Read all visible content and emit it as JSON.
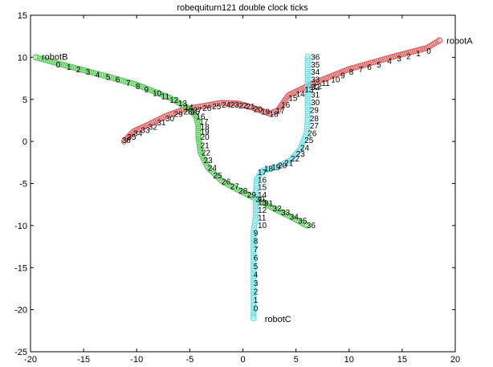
{
  "chart_data": {
    "type": "scatter",
    "title": "robequiturn121  double clock ticks",
    "xlabel": "",
    "ylabel": "",
    "xlim": [
      -20,
      20
    ],
    "ylim": [
      -25,
      15
    ],
    "xticks": [
      -20,
      -15,
      -10,
      -5,
      0,
      5,
      10,
      15,
      20
    ],
    "yticks": [
      -25,
      -20,
      -15,
      -10,
      -5,
      0,
      5,
      10,
      15
    ],
    "grid": false,
    "series": [
      {
        "name": "robotA",
        "color": "#e06060",
        "start_label": {
          "text": "robotA",
          "x": 18.5,
          "y": 12
        },
        "labeled_ticks": [
          {
            "t": "0",
            "x": 17.3,
            "y": 10.8
          },
          {
            "t": "1",
            "x": 16.3,
            "y": 10.5
          },
          {
            "t": "2",
            "x": 15.4,
            "y": 10.2
          },
          {
            "t": "3",
            "x": 14.5,
            "y": 9.9
          },
          {
            "t": "4",
            "x": 13.6,
            "y": 9.6
          },
          {
            "t": "5",
            "x": 12.6,
            "y": 9.2
          },
          {
            "t": "6",
            "x": 11.7,
            "y": 8.9
          },
          {
            "t": "7",
            "x": 10.9,
            "y": 8.6
          },
          {
            "t": "8",
            "x": 10.0,
            "y": 8.3
          },
          {
            "t": "9",
            "x": 9.2,
            "y": 7.9
          },
          {
            "t": "10",
            "x": 8.3,
            "y": 7.4
          },
          {
            "t": "11",
            "x": 7.4,
            "y": 7.0
          },
          {
            "t": "12",
            "x": 6.6,
            "y": 6.6
          },
          {
            "t": "13",
            "x": 5.8,
            "y": 6.2
          },
          {
            "t": "14",
            "x": 5.0,
            "y": 5.7
          },
          {
            "t": "15",
            "x": 4.3,
            "y": 5.2
          },
          {
            "t": "16",
            "x": 3.6,
            "y": 4.4
          },
          {
            "t": "17",
            "x": 3.1,
            "y": 3.7
          },
          {
            "t": "18",
            "x": 2.5,
            "y": 3.3
          },
          {
            "t": "19",
            "x": 1.7,
            "y": 3.6
          },
          {
            "t": "20",
            "x": 1.0,
            "y": 3.9
          },
          {
            "t": "21",
            "x": 0.3,
            "y": 4.2
          },
          {
            "t": "22",
            "x": -0.4,
            "y": 4.3
          },
          {
            "t": "23",
            "x": -1.2,
            "y": 4.4
          },
          {
            "t": "24",
            "x": -2.0,
            "y": 4.4
          },
          {
            "t": "25",
            "x": -2.9,
            "y": 4.2
          },
          {
            "t": "26",
            "x": -3.8,
            "y": 4.0
          },
          {
            "t": "27",
            "x": -4.7,
            "y": 3.8
          },
          {
            "t": "28",
            "x": -5.6,
            "y": 3.6
          },
          {
            "t": "29",
            "x": -6.5,
            "y": 3.3
          },
          {
            "t": "30",
            "x": -7.3,
            "y": 2.8
          },
          {
            "t": "31",
            "x": -8.1,
            "y": 2.3
          },
          {
            "t": "32",
            "x": -8.9,
            "y": 1.8
          },
          {
            "t": "33",
            "x": -9.6,
            "y": 1.4
          },
          {
            "t": "34",
            "x": -10.3,
            "y": 1.0
          },
          {
            "t": "35",
            "x": -10.9,
            "y": 0.6
          },
          {
            "t": "36",
            "x": -11.4,
            "y": 0.2
          }
        ],
        "path": [
          [
            18.5,
            12
          ],
          [
            17.3,
            11.1
          ],
          [
            14.5,
            10.2
          ],
          [
            10,
            8.6
          ],
          [
            6.6,
            6.9
          ],
          [
            4.3,
            5.5
          ],
          [
            3.3,
            3.7
          ],
          [
            2.5,
            3.3
          ],
          [
            1.2,
            3.9
          ],
          [
            -0.4,
            4.5
          ],
          [
            -2,
            4.6
          ],
          [
            -3.8,
            4.2
          ],
          [
            -5.6,
            3.8
          ],
          [
            -7.3,
            3.0
          ],
          [
            -8.9,
            2.0
          ],
          [
            -10.3,
            1.2
          ],
          [
            -11.2,
            0
          ]
        ]
      },
      {
        "name": "robotB",
        "color": "#5ccc5c",
        "start_label": {
          "text": "robotB",
          "x": -20,
          "y": 10
        },
        "labeled_ticks": [
          {
            "t": "0",
            "x": -17.6,
            "y": 9.2
          },
          {
            "t": "1",
            "x": -16.6,
            "y": 8.9
          },
          {
            "t": "2",
            "x": -15.7,
            "y": 8.6
          },
          {
            "t": "3",
            "x": -14.8,
            "y": 8.3
          },
          {
            "t": "4",
            "x": -13.9,
            "y": 8.0
          },
          {
            "t": "5",
            "x": -12.9,
            "y": 7.7
          },
          {
            "t": "6",
            "x": -12.0,
            "y": 7.4
          },
          {
            "t": "7",
            "x": -11.0,
            "y": 7.0
          },
          {
            "t": "8",
            "x": -10.1,
            "y": 6.6
          },
          {
            "t": "9",
            "x": -9.3,
            "y": 6.2
          },
          {
            "t": "10",
            "x": -8.5,
            "y": 5.8
          },
          {
            "t": "11",
            "x": -7.7,
            "y": 5.4
          },
          {
            "t": "12",
            "x": -6.9,
            "y": 5.0
          },
          {
            "t": "13",
            "x": -6.1,
            "y": 4.6
          },
          {
            "t": "14",
            "x": -5.5,
            "y": 4.1
          },
          {
            "t": "15",
            "x": -4.9,
            "y": 3.6
          },
          {
            "t": "16",
            "x": -4.4,
            "y": 3.0
          },
          {
            "t": "17",
            "x": -4.1,
            "y": 2.4
          },
          {
            "t": "18",
            "x": -4.0,
            "y": 1.8
          },
          {
            "t": "19",
            "x": -4.0,
            "y": 1.2
          },
          {
            "t": "20",
            "x": -4.0,
            "y": 0.6
          },
          {
            "t": "21",
            "x": -4.0,
            "y": -0.4
          },
          {
            "t": "22",
            "x": -3.9,
            "y": -1.3
          },
          {
            "t": "23",
            "x": -3.7,
            "y": -2.2
          },
          {
            "t": "24",
            "x": -3.3,
            "y": -3.1
          },
          {
            "t": "25",
            "x": -2.8,
            "y": -4.0
          },
          {
            "t": "26",
            "x": -2.0,
            "y": -4.7
          },
          {
            "t": "27",
            "x": -1.2,
            "y": -5.3
          },
          {
            "t": "28",
            "x": -0.4,
            "y": -5.8
          },
          {
            "t": "29",
            "x": 0.4,
            "y": -6.3
          },
          {
            "t": "30",
            "x": 1.2,
            "y": -6.8
          },
          {
            "t": "31",
            "x": 2.0,
            "y": -7.3
          },
          {
            "t": "32",
            "x": 2.8,
            "y": -7.9
          },
          {
            "t": "33",
            "x": 3.6,
            "y": -8.4
          },
          {
            "t": "34",
            "x": 4.4,
            "y": -8.9
          },
          {
            "t": "35",
            "x": 5.2,
            "y": -9.4
          },
          {
            "t": "36",
            "x": 6.0,
            "y": -9.9
          }
        ],
        "path": [
          [
            -19.5,
            10
          ],
          [
            -17.8,
            9.4
          ],
          [
            -13.9,
            8.1
          ],
          [
            -10.1,
            6.8
          ],
          [
            -6.9,
            5.2
          ],
          [
            -5.2,
            4.0
          ],
          [
            -4.4,
            3.0
          ],
          [
            -4.2,
            1.8
          ],
          [
            -4.2,
            0.6
          ],
          [
            -4.0,
            -1.3
          ],
          [
            -3.3,
            -3.1
          ],
          [
            -2.0,
            -4.7
          ],
          [
            -0.4,
            -5.8
          ],
          [
            1.2,
            -6.8
          ],
          [
            2.8,
            -7.9
          ],
          [
            4.4,
            -8.9
          ],
          [
            6.0,
            -10.0
          ]
        ]
      },
      {
        "name": "robotC",
        "color": "#6ee0e8",
        "start_label": {
          "text": "robotC",
          "x": 1.0,
          "y": -21
        },
        "labeled_ticks": [
          {
            "t": "0",
            "x": 1.0,
            "y": -19.8
          },
          {
            "t": "1",
            "x": 1.0,
            "y": -18.8
          },
          {
            "t": "2",
            "x": 1.0,
            "y": -17.8
          },
          {
            "t": "3",
            "x": 1.0,
            "y": -16.8
          },
          {
            "t": "4",
            "x": 1.0,
            "y": -15.8
          },
          {
            "t": "5",
            "x": 1.0,
            "y": -14.8
          },
          {
            "t": "6",
            "x": 1.0,
            "y": -13.8
          },
          {
            "t": "7",
            "x": 1.0,
            "y": -12.8
          },
          {
            "t": "8",
            "x": 1.0,
            "y": -11.8
          },
          {
            "t": "9",
            "x": 1.0,
            "y": -10.8
          },
          {
            "t": "10",
            "x": 1.4,
            "y": -9.9
          },
          {
            "t": "11",
            "x": 1.4,
            "y": -9.0
          },
          {
            "t": "12",
            "x": 1.4,
            "y": -8.1
          },
          {
            "t": "13",
            "x": 1.4,
            "y": -7.2
          },
          {
            "t": "14",
            "x": 1.4,
            "y": -6.3
          },
          {
            "t": "15",
            "x": 1.4,
            "y": -5.4
          },
          {
            "t": "16",
            "x": 1.4,
            "y": -4.5
          },
          {
            "t": "17",
            "x": 1.4,
            "y": -3.6
          },
          {
            "t": "18",
            "x": 2.0,
            "y": -3.2
          },
          {
            "t": "19",
            "x": 2.7,
            "y": -3.0
          },
          {
            "t": "20",
            "x": 3.3,
            "y": -2.8
          },
          {
            "t": "21",
            "x": 3.9,
            "y": -2.5
          },
          {
            "t": "22",
            "x": 4.5,
            "y": -2.0
          },
          {
            "t": "23",
            "x": 5.0,
            "y": -1.4
          },
          {
            "t": "24",
            "x": 5.4,
            "y": -0.7
          },
          {
            "t": "25",
            "x": 5.8,
            "y": 0.2
          },
          {
            "t": "26",
            "x": 6.1,
            "y": 1.0
          },
          {
            "t": "27",
            "x": 6.3,
            "y": 1.9
          },
          {
            "t": "28",
            "x": 6.3,
            "y": 2.8
          },
          {
            "t": "29",
            "x": 6.3,
            "y": 3.8
          },
          {
            "t": "30",
            "x": 6.4,
            "y": 4.7
          },
          {
            "t": "31",
            "x": 6.4,
            "y": 5.6
          },
          {
            "t": "32",
            "x": 6.4,
            "y": 6.5
          },
          {
            "t": "33",
            "x": 6.4,
            "y": 7.4
          },
          {
            "t": "34",
            "x": 6.4,
            "y": 8.3
          },
          {
            "t": "35",
            "x": 6.4,
            "y": 9.2
          },
          {
            "t": "36",
            "x": 6.4,
            "y": 10.1
          }
        ],
        "path": [
          [
            1,
            -21
          ],
          [
            1,
            -19.8
          ],
          [
            1,
            -14.8
          ],
          [
            1.0,
            -10.8
          ],
          [
            1.2,
            -9.0
          ],
          [
            1.2,
            -6.3
          ],
          [
            1.3,
            -4.5
          ],
          [
            1.8,
            -3.5
          ],
          [
            3.3,
            -3.0
          ],
          [
            4.5,
            -2.2
          ],
          [
            5.4,
            -0.9
          ],
          [
            6.0,
            1.0
          ],
          [
            6.1,
            2.8
          ],
          [
            6.1,
            5.6
          ],
          [
            6.1,
            8.3
          ],
          [
            6.1,
            10.1
          ]
        ]
      }
    ]
  }
}
